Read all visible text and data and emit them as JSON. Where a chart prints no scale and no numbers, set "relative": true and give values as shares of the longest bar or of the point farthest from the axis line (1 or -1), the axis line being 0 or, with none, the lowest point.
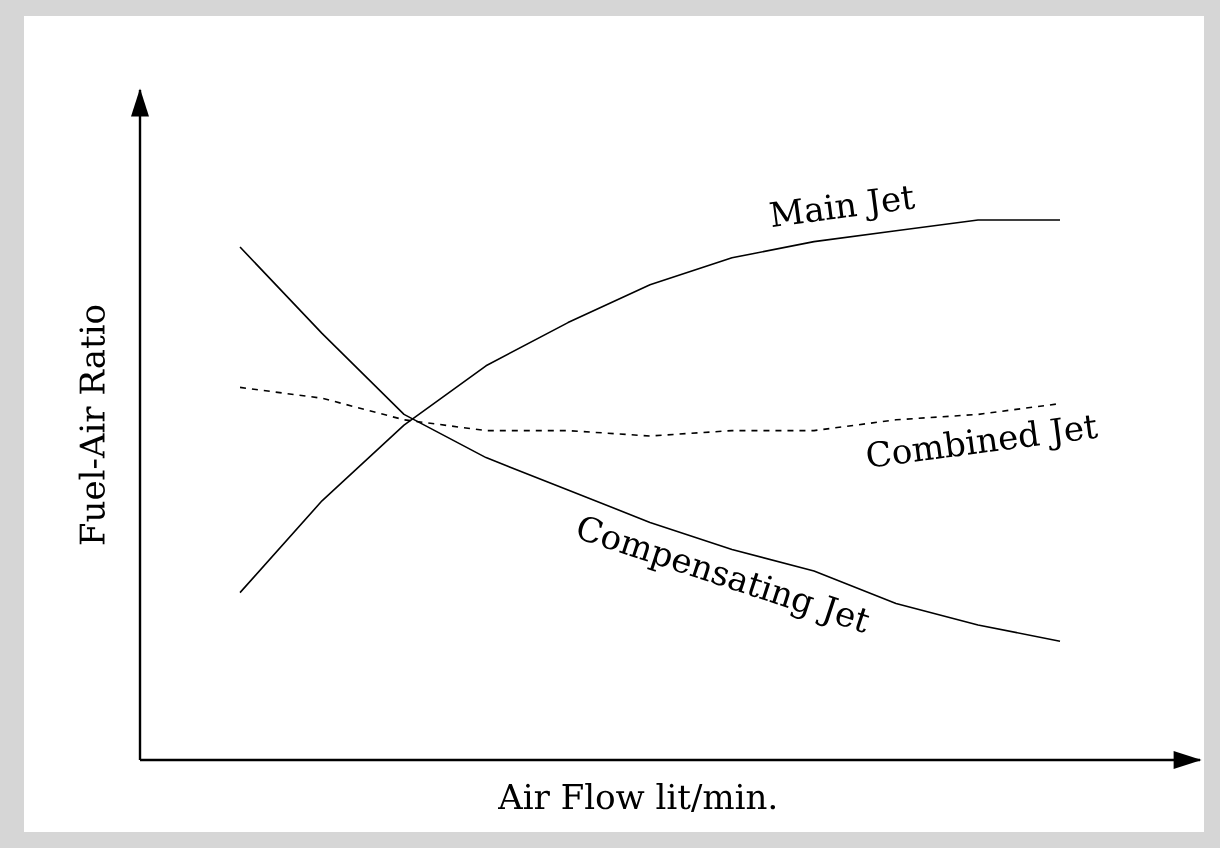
{
  "chart_data": {
    "type": "line",
    "relative": true,
    "xlabel": "Air Flow lit/min.",
    "ylabel": "Fuel-Air Ratio",
    "marker": "none",
    "categories": [
      null,
      null,
      null,
      null,
      null,
      null,
      null,
      null,
      null,
      null,
      null
    ],
    "series": [
      {
        "name": "Main Jet",
        "color": "#000000",
        "line_style": "solid",
        "values": [
          0.31,
          0.48,
          0.62,
          0.73,
          0.81,
          0.88,
          0.93,
          0.96,
          0.98,
          1.0,
          1.0
        ]
      },
      {
        "name": "Combined Jet",
        "color": "#000000",
        "line_style": "dashed",
        "values": [
          0.69,
          0.67,
          0.63,
          0.61,
          0.61,
          0.6,
          0.61,
          0.61,
          0.63,
          0.64,
          0.66
        ]
      },
      {
        "name": "Compensating Jet",
        "color": "#000000",
        "line_style": "solid",
        "values": [
          0.95,
          0.79,
          0.64,
          0.56,
          0.5,
          0.44,
          0.39,
          0.35,
          0.29,
          0.25,
          0.22
        ]
      }
    ]
  }
}
